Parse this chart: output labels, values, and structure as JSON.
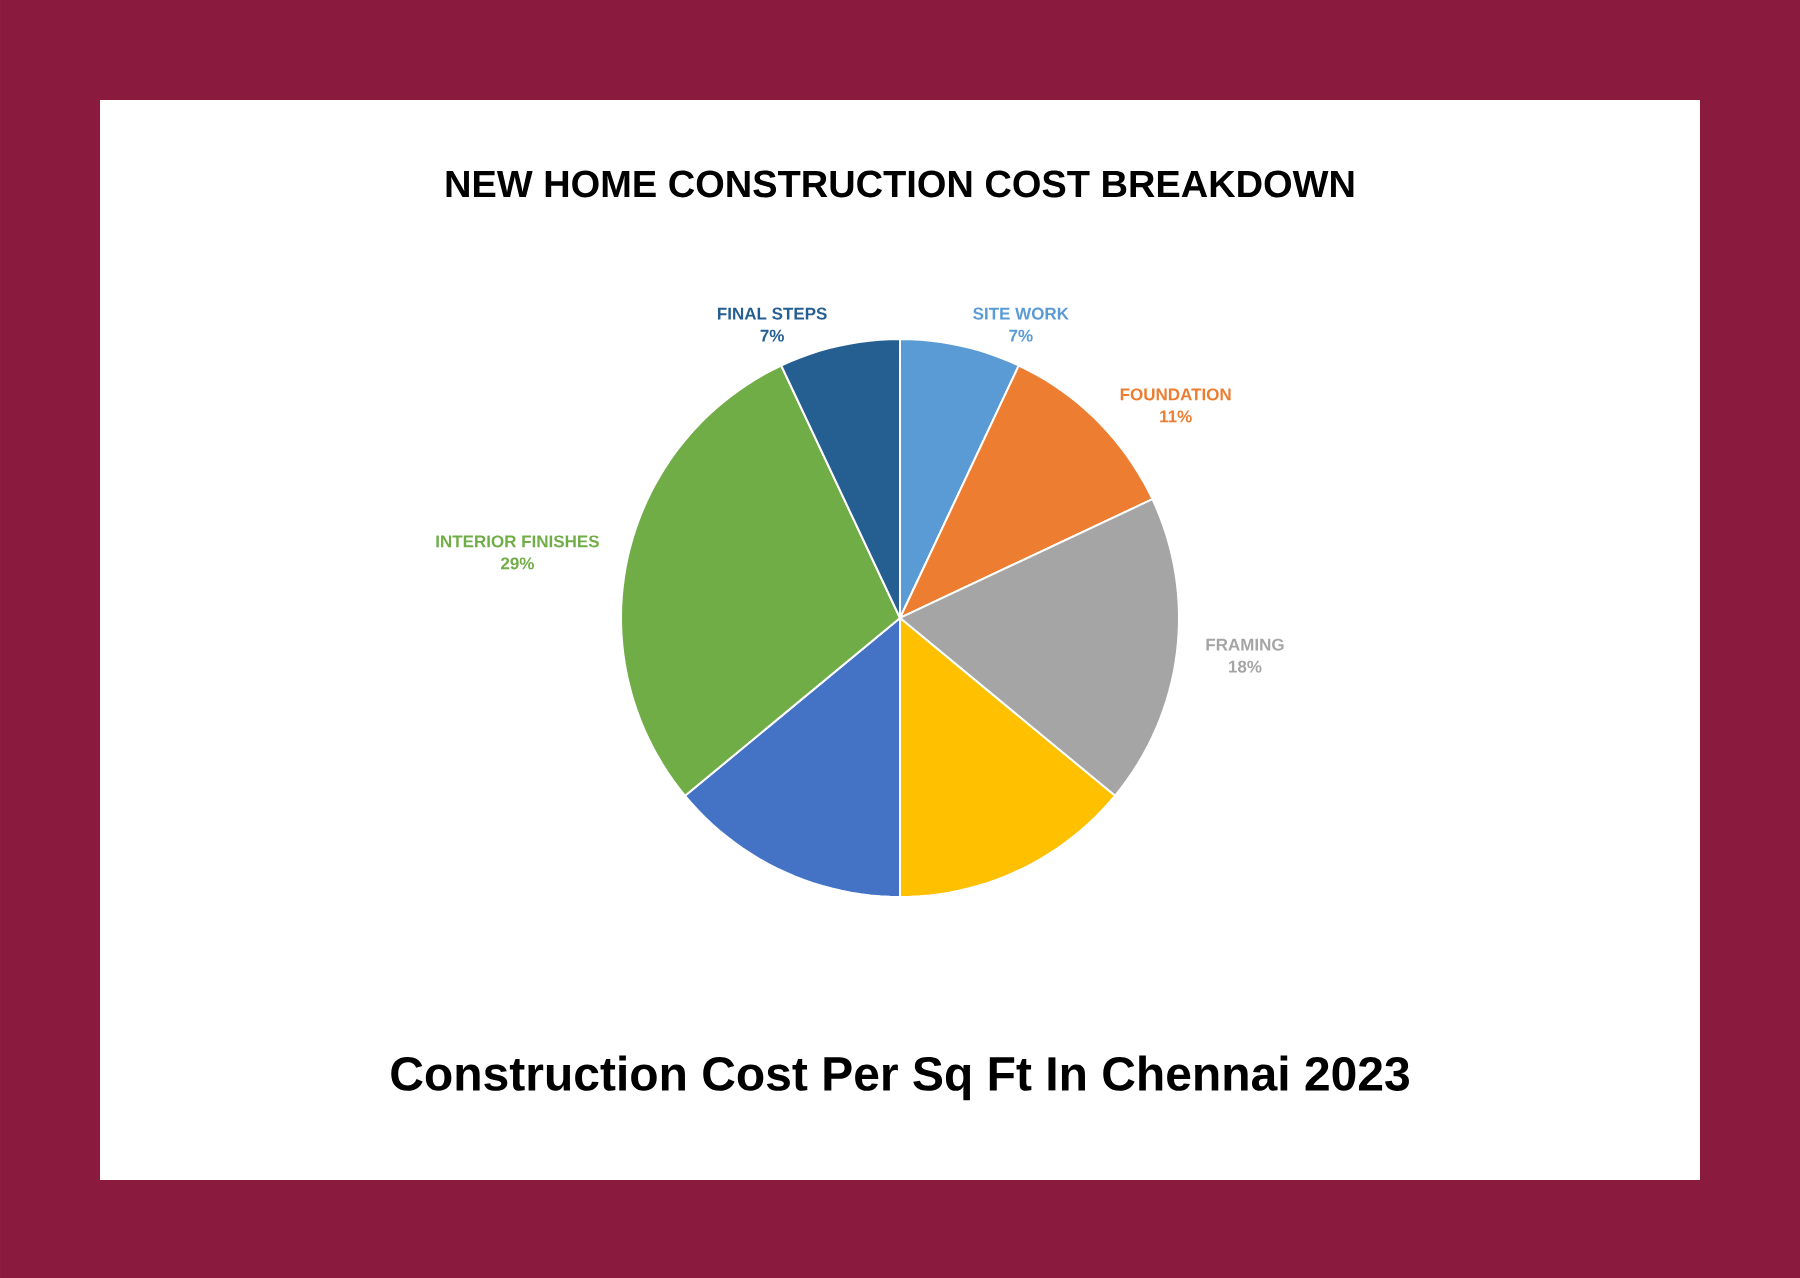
{
  "chart_data": {
    "type": "pie",
    "title": "NEW HOME CONSTRUCTION COST BREAKDOWN",
    "categories": [
      "SITE WORK",
      "FOUNDATION",
      "FRAMING",
      null,
      null,
      "INTERIOR FINISHES",
      "FINAL STEPS"
    ],
    "values": [
      7,
      11,
      18,
      14,
      14,
      29,
      7
    ],
    "value_labels": [
      "7%",
      "11%",
      "18%",
      null,
      null,
      "29%",
      "7%"
    ],
    "colors": [
      "#5b9bd5",
      "#ed7d31",
      "#a5a5a5",
      "#ffc000",
      "#4472c4",
      "#70ad47",
      "#255e91"
    ],
    "annotations": [
      "Construction Cost Per Sq Ft In Chennai 2023"
    ]
  }
}
